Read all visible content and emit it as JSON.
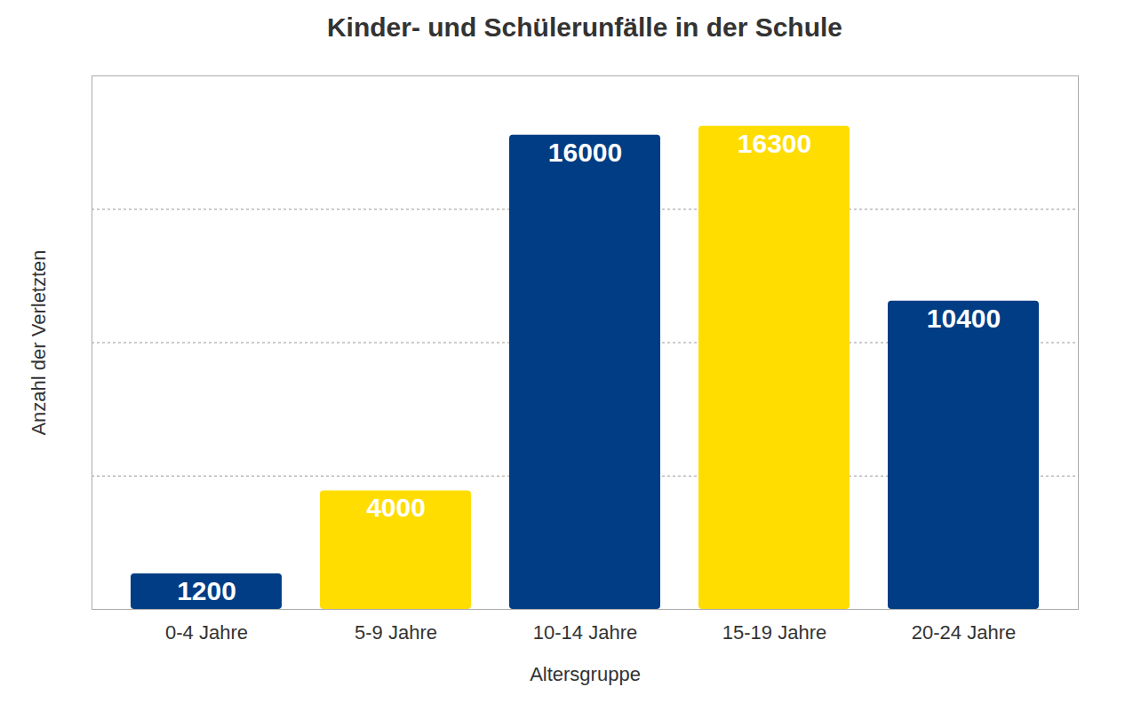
{
  "chart_data": {
    "type": "bar",
    "title": "Kinder- und Schülerunfälle in der Schule",
    "x_label": "Altersgruppe",
    "y_label": "Anzahl der Verletzten",
    "categories": [
      "0-4 Jahre",
      "5-9 Jahre",
      "10-14 Jahre",
      "15-19 Jahre",
      "20-24 Jahre"
    ],
    "values": [
      1200,
      4000,
      16000,
      16300,
      10400
    ],
    "colors": [
      "#003d84",
      "#ffdd00",
      "#003d84",
      "#ffdd00",
      "#003d84"
    ],
    "ylim": [
      0,
      18000
    ],
    "yticks": [
      0,
      4500,
      9000,
      13500,
      18000
    ],
    "grid": true,
    "data_labels": true,
    "tick_labels": "x"
  }
}
